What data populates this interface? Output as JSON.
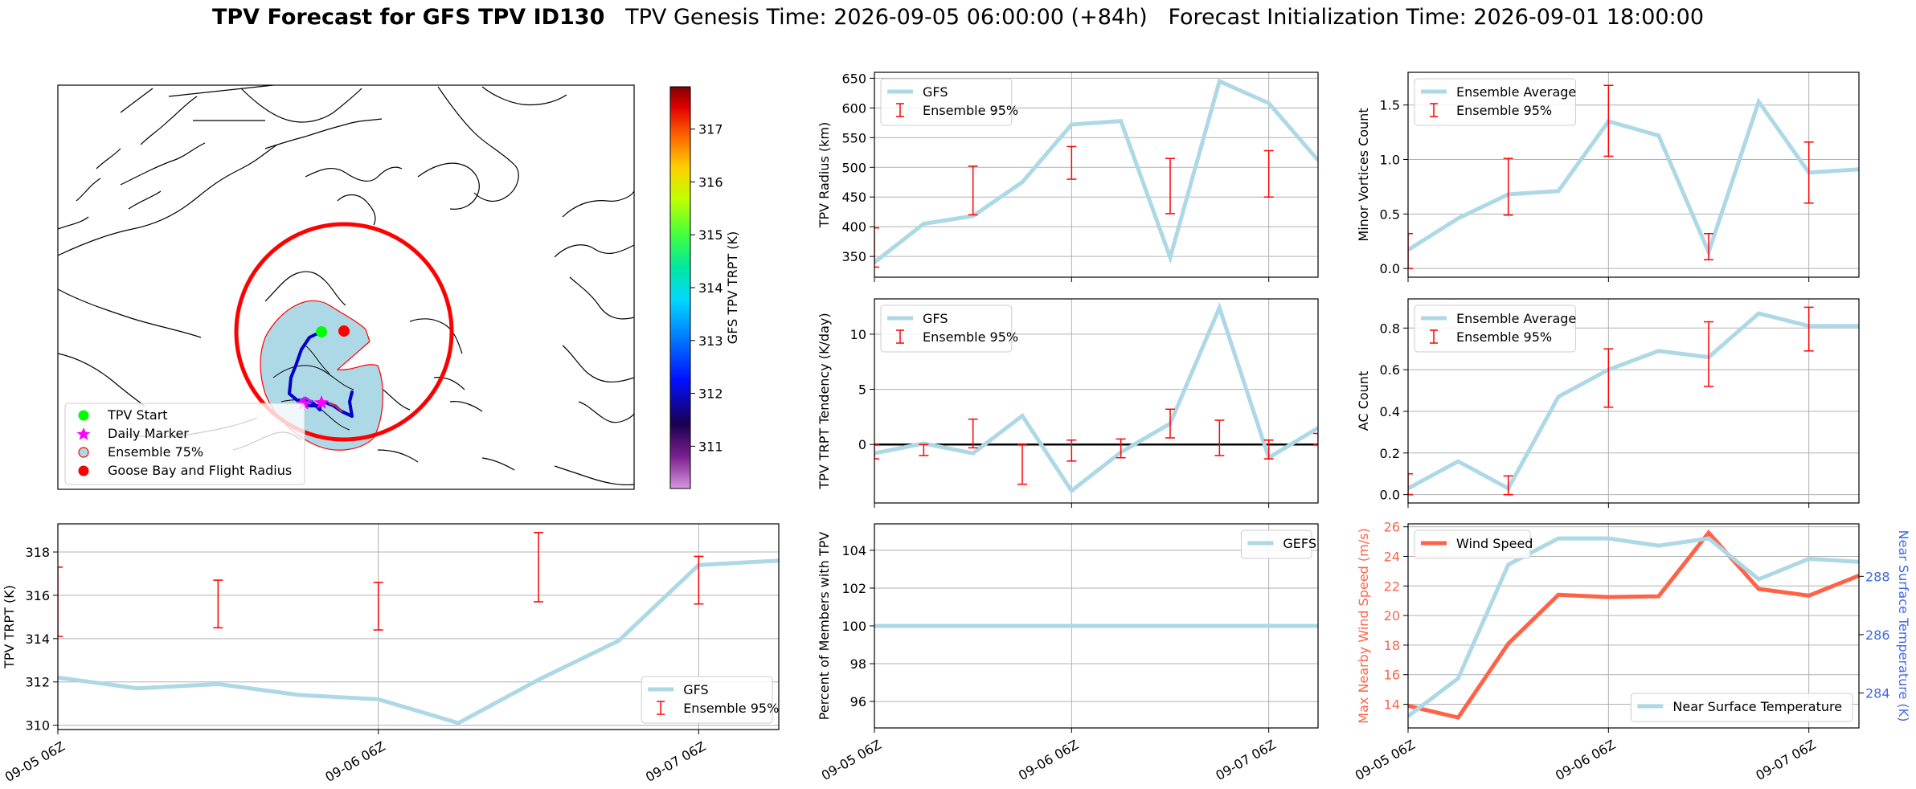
{
  "title": {
    "bold": "TPV Forecast for GFS TPV ID130",
    "genesis": "TPV Genesis Time: 2026-09-05 06:00:00 (+84h)",
    "init": "Forecast Initialization Time: 2026-09-01 18:00:00"
  },
  "colors": {
    "gfs_line": "#add8e6",
    "ensemble_bar": "#ff0000",
    "wind": "#ff6347",
    "temp_axis": "#4169e1",
    "track": "#0000cd",
    "flight_radius": "#ff0000"
  },
  "map": {
    "legend": [
      "TPV Start",
      "Daily Marker",
      "Ensemble 75%",
      "Goose Bay and Flight Radius"
    ],
    "colorbar": {
      "label": "GFS TPV TRPT (K)",
      "ticks": [
        311,
        312,
        313,
        314,
        315,
        316,
        317
      ],
      "range": [
        310.2,
        317.8
      ]
    },
    "icons": [
      "tpv-start-marker",
      "daily-marker-star",
      "ensemble-75-patch",
      "goose-bay-marker"
    ]
  },
  "date_ticks": [
    "09-05 06Z",
    "09-06 06Z",
    "09-07 06Z"
  ],
  "chart_data": [
    {
      "id": "trpt",
      "type": "line",
      "ylabel": "TPV TRPT (K)",
      "xlim": [
        0,
        2.25
      ],
      "ylim": [
        309.8,
        319.3
      ],
      "yticks": [
        310,
        312,
        314,
        316,
        318
      ],
      "x": [
        0,
        0.25,
        0.5,
        0.75,
        1.0,
        1.25,
        1.5,
        1.75,
        2.0,
        2.25
      ],
      "series": [
        {
          "name": "GFS",
          "values": [
            312.2,
            311.7,
            311.9,
            311.4,
            311.2,
            310.1,
            312.1,
            313.9,
            317.4,
            317.6
          ]
        }
      ],
      "errorbars": {
        "name": "Ensemble 95%",
        "x": [
          0,
          0.5,
          1.0,
          1.5,
          2.0
        ],
        "low": [
          314.1,
          314.5,
          314.4,
          315.7,
          315.6
        ],
        "high": [
          317.3,
          316.7,
          316.6,
          318.9,
          317.8
        ]
      },
      "legend": "lower-right"
    },
    {
      "id": "radius",
      "type": "line",
      "ylabel": "TPV Radius (km)",
      "xlim": [
        0,
        2.25
      ],
      "ylim": [
        315,
        660
      ],
      "yticks": [
        350,
        400,
        450,
        500,
        550,
        600,
        650
      ],
      "x": [
        0,
        0.25,
        0.5,
        0.75,
        1.0,
        1.25,
        1.5,
        1.75,
        2.0,
        2.25
      ],
      "series": [
        {
          "name": "GFS",
          "values": [
            340,
            405,
            418,
            475,
            572,
            578,
            348,
            645,
            608,
            512
          ]
        }
      ],
      "errorbars": {
        "name": "Ensemble 95%",
        "x": [
          0,
          0.5,
          1.0,
          1.5,
          2.0
        ],
        "low": [
          332,
          420,
          480,
          422,
          450
        ],
        "high": [
          398,
          502,
          535,
          515,
          528
        ]
      },
      "legend": "upper-left"
    },
    {
      "id": "minor_vortices",
      "type": "line",
      "ylabel": "Minor Vortices Count",
      "xlim": [
        0,
        2.25
      ],
      "ylim": [
        -0.08,
        1.8
      ],
      "yticks": [
        0.0,
        0.5,
        1.0,
        1.5
      ],
      "x": [
        0,
        0.25,
        0.5,
        0.75,
        1.0,
        1.25,
        1.5,
        1.75,
        2.0,
        2.25
      ],
      "series": [
        {
          "name": "Ensemble Average",
          "values": [
            0.17,
            0.46,
            0.68,
            0.71,
            1.35,
            1.22,
            0.15,
            1.53,
            0.88,
            0.91
          ]
        }
      ],
      "errorbars": {
        "name": "Ensemble 95%",
        "x": [
          0,
          0.5,
          1.0,
          1.5,
          2.0
        ],
        "low": [
          0.0,
          0.49,
          1.03,
          0.08,
          0.6
        ],
        "high": [
          0.32,
          1.01,
          1.68,
          0.32,
          1.16
        ]
      },
      "legend": "upper-left"
    },
    {
      "id": "trpt_tendency",
      "type": "line",
      "ylabel": "TPV TRPT Tendency (K/day)",
      "xlim": [
        0,
        2.25
      ],
      "ylim": [
        -5.3,
        13.2
      ],
      "yticks": [
        0,
        5,
        10
      ],
      "zero_line": true,
      "x": [
        0,
        0.25,
        0.5,
        0.75,
        1.0,
        1.25,
        1.5,
        1.75,
        2.0,
        2.25
      ],
      "series": [
        {
          "name": "GFS",
          "values": [
            -0.8,
            0.1,
            -0.8,
            2.6,
            -4.2,
            -0.7,
            1.9,
            12.4,
            -1.2,
            1.5
          ]
        }
      ],
      "errorbars": {
        "name": "Ensemble 95%",
        "x": [
          0,
          0.25,
          0.5,
          0.75,
          1.0,
          1.25,
          1.5,
          1.75,
          2.0,
          2.25
        ],
        "low": [
          -1.3,
          -1.0,
          -0.3,
          -3.6,
          -1.5,
          -1.2,
          0.6,
          -1.0,
          -1.3,
          0.0
        ],
        "high": [
          0.0,
          0.0,
          2.3,
          0.0,
          0.4,
          0.5,
          3.2,
          2.2,
          0.4,
          1.0
        ]
      },
      "legend": "upper-left"
    },
    {
      "id": "ac_count",
      "type": "line",
      "ylabel": "AC Count",
      "xlim": [
        0,
        2.25
      ],
      "ylim": [
        -0.04,
        0.94
      ],
      "yticks": [
        0.0,
        0.2,
        0.4,
        0.6,
        0.8
      ],
      "x": [
        0,
        0.25,
        0.5,
        0.75,
        1.0,
        1.25,
        1.5,
        1.75,
        2.0,
        2.25
      ],
      "series": [
        {
          "name": "Ensemble Average",
          "values": [
            0.03,
            0.16,
            0.03,
            0.47,
            0.6,
            0.69,
            0.66,
            0.87,
            0.81,
            0.81
          ]
        }
      ],
      "errorbars": {
        "name": "Ensemble 95%",
        "x": [
          0,
          0.5,
          1.0,
          1.5,
          2.0
        ],
        "low": [
          0.0,
          0.0,
          0.42,
          0.52,
          0.69
        ],
        "high": [
          0.1,
          0.09,
          0.7,
          0.83,
          0.9
        ]
      },
      "legend": "upper-left"
    },
    {
      "id": "percent_members",
      "type": "line",
      "ylabel": "Percent of Members with TPV",
      "xlim": [
        0,
        2.25
      ],
      "ylim": [
        94.6,
        105.4
      ],
      "yticks": [
        96,
        98,
        100,
        102,
        104
      ],
      "x": [
        0,
        0.25,
        0.5,
        0.75,
        1.0,
        1.25,
        1.5,
        1.75,
        2.0,
        2.25
      ],
      "series": [
        {
          "name": "GEFS",
          "values": [
            100,
            100,
            100,
            100,
            100,
            100,
            100,
            100,
            100,
            100
          ]
        }
      ],
      "legend": "upper-right"
    },
    {
      "id": "wind_temp",
      "type": "line",
      "ylabel": "Max Nearby Wind Speed (m/s)",
      "y2label": "Near Surface Temperature (K)",
      "xlim": [
        0,
        2.25
      ],
      "ylim": [
        12.4,
        26.2
      ],
      "yticks": [
        14,
        16,
        18,
        20,
        22,
        24,
        26
      ],
      "y2lim": [
        282.8,
        289.8
      ],
      "y2ticks": [
        284,
        286,
        288
      ],
      "x": [
        0,
        0.25,
        0.5,
        0.75,
        1.0,
        1.25,
        1.5,
        1.75,
        2.0,
        2.25
      ],
      "series": [
        {
          "name": "Wind Speed",
          "axis": "left",
          "values": [
            13.9,
            13.1,
            18.1,
            21.4,
            21.25,
            21.3,
            25.6,
            21.8,
            21.35,
            22.7
          ]
        },
        {
          "name": "Near Surface Temperature",
          "axis": "right",
          "values": [
            283.2,
            284.5,
            288.4,
            289.3,
            289.3,
            289.05,
            289.3,
            287.9,
            288.6,
            288.5
          ]
        }
      ],
      "legend": [
        "upper-left",
        "lower-right"
      ]
    }
  ]
}
